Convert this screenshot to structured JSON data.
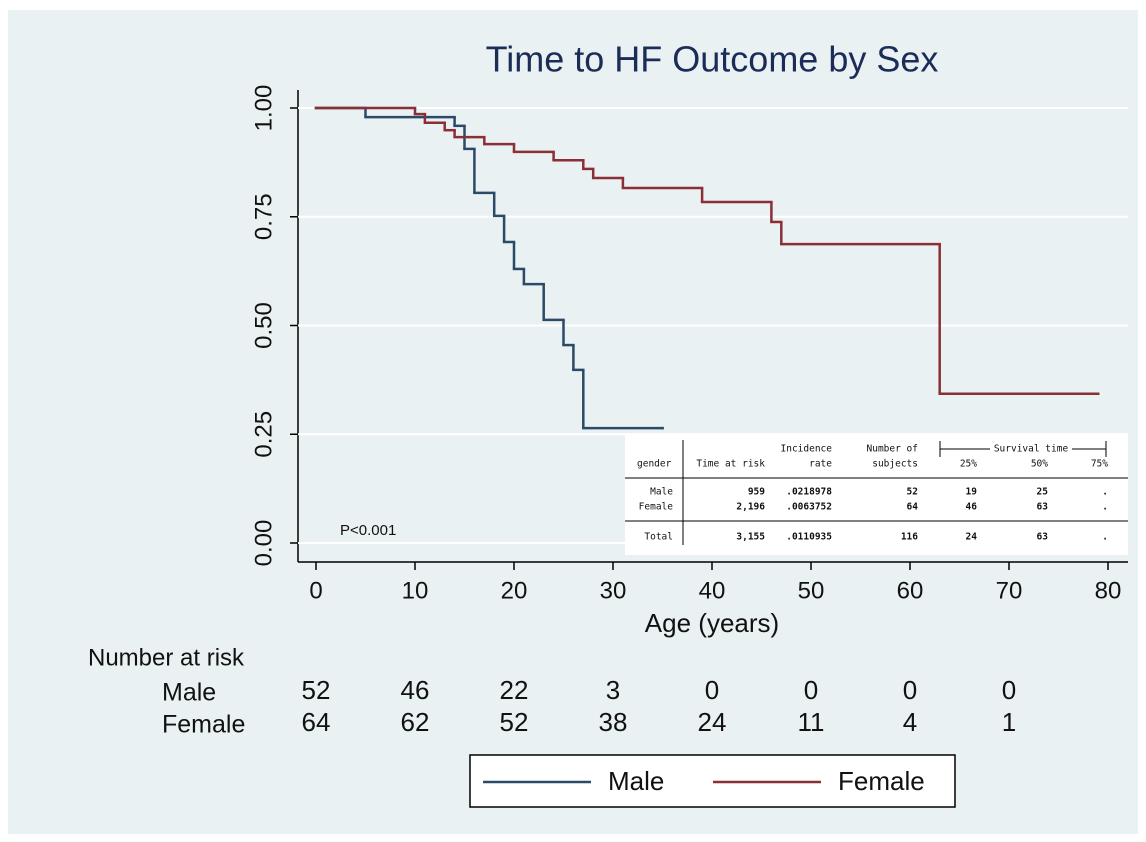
{
  "chart_data": {
    "type": "step",
    "title": "Time to HF Outcome by Sex",
    "xlabel": "Age (years)",
    "xlim": [
      0,
      80
    ],
    "xticks": [
      0,
      10,
      20,
      30,
      40,
      50,
      60,
      70,
      80
    ],
    "ylim": [
      0,
      1
    ],
    "yticks": [
      {
        "value": 0,
        "label": "0.00"
      },
      0.25,
      {
        "value": 0.5,
        "label": "0.50"
      },
      0.75,
      {
        "value": 1,
        "label": "1.00"
      }
    ],
    "grid": true,
    "annotation": "P<0.001",
    "series": [
      {
        "name": "Male",
        "color": "#2a4a68",
        "x": [
          0,
          5,
          14,
          15,
          16,
          18,
          19,
          20,
          21,
          23,
          25,
          26,
          27,
          35
        ],
        "values": [
          1.0,
          0.979,
          0.959,
          0.906,
          0.805,
          0.752,
          0.692,
          0.63,
          0.595,
          0.513,
          0.455,
          0.398,
          0.264,
          0.264
        ]
      },
      {
        "name": "Female",
        "color": "#8b2f37",
        "x": [
          0,
          10,
          11,
          13,
          14,
          17,
          20,
          24,
          27,
          28,
          31,
          39,
          46,
          47,
          63,
          79
        ],
        "values": [
          1.0,
          0.986,
          0.966,
          0.949,
          0.933,
          0.917,
          0.899,
          0.88,
          0.86,
          0.839,
          0.816,
          0.784,
          0.738,
          0.687,
          0.343,
          0.343
        ]
      }
    ],
    "risk_table": {
      "title": "Number at risk",
      "x": [
        0,
        10,
        20,
        30,
        40,
        50,
        60,
        70
      ],
      "rows": [
        {
          "name": "Male",
          "values": [
            52,
            46,
            22,
            3,
            0,
            0,
            0,
            0
          ]
        },
        {
          "name": "Female",
          "values": [
            64,
            62,
            52,
            38,
            24,
            11,
            4,
            1
          ]
        }
      ]
    },
    "inset_table": {
      "group_header": "Survival time",
      "columns": [
        [
          "gender"
        ],
        [
          "Time at risk"
        ],
        [
          "Incidence",
          "rate"
        ],
        [
          "Number of",
          "subjects"
        ],
        [
          "25%"
        ],
        [
          "50%"
        ],
        [
          "75%"
        ]
      ],
      "rows": [
        [
          "Male",
          "959",
          ".0218978",
          "52",
          "19",
          "25",
          "."
        ],
        [
          "Female",
          "2,196",
          ".0063752",
          "64",
          "46",
          "63",
          "."
        ]
      ],
      "total": [
        "Total",
        "3,155",
        ".0110935",
        "116",
        "24",
        "63",
        "."
      ]
    }
  }
}
